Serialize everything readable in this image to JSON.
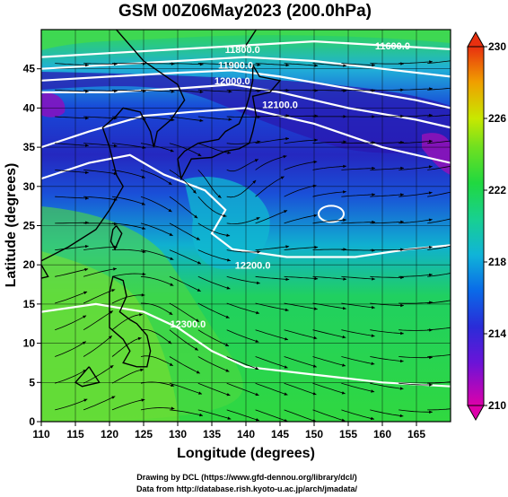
{
  "chart_data": {
    "type": "heatmap",
    "title": "GSM 00Z06May2023 (200.0hPa)",
    "xlabel": "Longitude (degrees)",
    "ylabel": "Latitude  (degrees)",
    "xlim": [
      110,
      170
    ],
    "ylim": [
      0,
      50
    ],
    "xticks": [
      110,
      115,
      120,
      125,
      130,
      135,
      140,
      145,
      150,
      155,
      160,
      165
    ],
    "yticks": [
      0,
      5,
      10,
      15,
      20,
      25,
      30,
      35,
      40,
      45
    ],
    "grid": true,
    "colorbar": {
      "position": "right",
      "min": 210,
      "max": 230,
      "ticks": [
        210,
        214,
        218,
        222,
        226,
        230
      ],
      "colors": [
        "#dd00aa",
        "#3a18d8",
        "#0a60e8",
        "#10c0d0",
        "#18d060",
        "#40e030",
        "#c8e800",
        "#f0a000",
        "#e83010"
      ]
    },
    "contour_labels": [
      {
        "text": "11600.0",
        "lon": 161.5,
        "lat": 47.5
      },
      {
        "text": "11800.0",
        "lon": 139.5,
        "lat": 47.0
      },
      {
        "text": "11900.0",
        "lon": 138.5,
        "lat": 45.0
      },
      {
        "text": "12000.0",
        "lon": 138.0,
        "lat": 43.0
      },
      {
        "text": "12100.0",
        "lon": 145.0,
        "lat": 40.0
      },
      {
        "text": "12200.0",
        "lon": 141.0,
        "lat": 19.5
      },
      {
        "text": "12300.0",
        "lon": 131.5,
        "lat": 12.0
      }
    ],
    "wind_arrows": "streamlines"
  },
  "credits": {
    "line1": "Drawing by DCL (https://www.gfd-dennou.org/library/dcl/)",
    "line2": "Data from http://database.rish.kyoto-u.ac.jp/arch/jmadata/"
  }
}
